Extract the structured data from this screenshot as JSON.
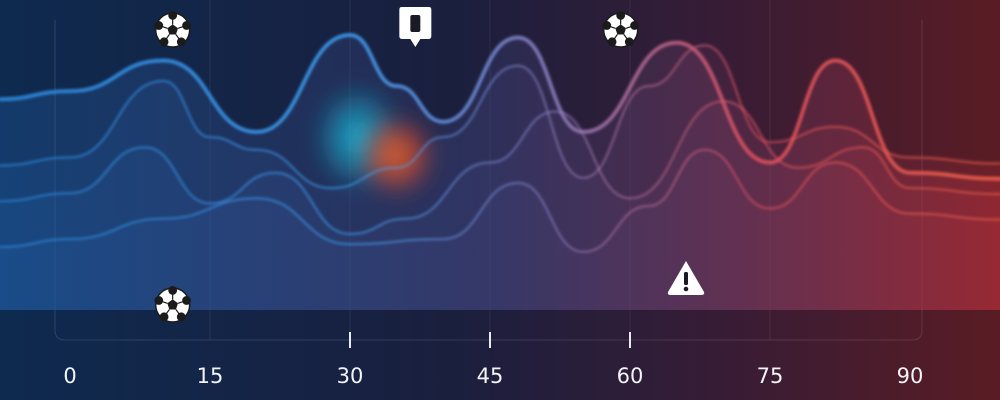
{
  "chart_data": {
    "type": "area",
    "x_ticks": [
      0,
      15,
      30,
      45,
      60,
      75,
      90
    ],
    "x_tick_labels": [
      "0",
      "15",
      "30",
      "45",
      "60",
      "75",
      "90"
    ],
    "xlim": [
      0,
      90
    ],
    "ylim": [
      0,
      1
    ],
    "series": [
      {
        "color": "#4aa0e8",
        "x": [
          0,
          10,
          20,
          30,
          35,
          40,
          48,
          55,
          65,
          75,
          82,
          90
        ],
        "y": [
          0.78,
          0.9,
          0.62,
          1.0,
          0.8,
          0.66,
          0.99,
          0.62,
          0.97,
          0.5,
          0.9,
          0.46
        ]
      },
      {
        "color": "#3a7cc8",
        "x": [
          0,
          10,
          15,
          20,
          28,
          35,
          40,
          48,
          55,
          62,
          68,
          75,
          82,
          90
        ],
        "y": [
          0.52,
          0.82,
          0.6,
          0.55,
          0.4,
          0.48,
          0.6,
          0.88,
          0.44,
          0.8,
          0.96,
          0.58,
          0.64,
          0.52
        ]
      },
      {
        "color": "#34629e",
        "x": [
          0,
          8,
          15,
          22,
          30,
          36,
          45,
          52,
          60,
          70,
          78,
          85,
          90
        ],
        "y": [
          0.38,
          0.56,
          0.34,
          0.46,
          0.22,
          0.28,
          0.5,
          0.7,
          0.36,
          0.74,
          0.48,
          0.56,
          0.4
        ]
      },
      {
        "color": "#e05060",
        "x": [
          0,
          10,
          20,
          30,
          40,
          48,
          55,
          62,
          68,
          75,
          82,
          90
        ],
        "y": [
          0.2,
          0.28,
          0.36,
          0.18,
          0.2,
          0.42,
          0.15,
          0.33,
          0.55,
          0.32,
          0.5,
          0.3
        ]
      }
    ],
    "hotspot": {
      "x": 33,
      "y": 0.55,
      "label": ""
    },
    "grid": "vertical",
    "event_markers": [
      {
        "x": 11,
        "icon": "soccer-ball-icon",
        "position": "top"
      },
      {
        "x": 11,
        "icon": "soccer-ball-icon",
        "position": "bottom"
      },
      {
        "x": 37,
        "icon": "substitution-card-icon",
        "position": "top"
      },
      {
        "x": 59,
        "icon": "soccer-ball-icon",
        "position": "top"
      },
      {
        "x": 66,
        "icon": "warning-icon",
        "position": "bottom"
      }
    ]
  }
}
